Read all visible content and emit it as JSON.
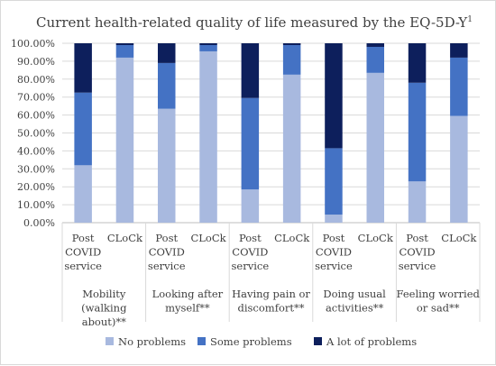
{
  "colors": {
    "no_problems": "#a8b9df",
    "some_problems": "#4472c4",
    "a_lot_of_problems": "#0d1f5c"
  },
  "chart_data": {
    "type": "bar",
    "stacked": true,
    "title": "Current health-related quality of life measured by the EQ-5D-Y",
    "title_superscript": "1",
    "xlabel": "",
    "ylabel": "",
    "ylim": [
      0,
      100
    ],
    "yticks": [
      "0.00%",
      "10.00%",
      "20.00%",
      "30.00%",
      "40.00%",
      "50.00%",
      "60.00%",
      "70.00%",
      "80.00%",
      "90.00%",
      "100.00%"
    ],
    "grid": true,
    "legend_position": "bottom",
    "groups": [
      {
        "label_lines": [
          "Mobility",
          "(walking",
          "about)**"
        ]
      },
      {
        "label_lines": [
          "Looking after",
          "myself**"
        ]
      },
      {
        "label_lines": [
          "Having pain or",
          "discomfort**"
        ]
      },
      {
        "label_lines": [
          "Doing usual",
          "activities**"
        ]
      },
      {
        "label_lines": [
          "Feeling worried",
          "or sad**"
        ]
      }
    ],
    "sub_categories": [
      {
        "label_lines": [
          "Post",
          "COVID",
          "service"
        ]
      },
      {
        "label_lines": [
          "CLoCk"
        ]
      }
    ],
    "categories": [
      "Mobility (walking about)** – Post COVID service",
      "Mobility (walking about)** – CLoCk",
      "Looking after myself** – Post COVID service",
      "Looking after myself** – CLoCk",
      "Having pain or discomfort** – Post COVID service",
      "Having pain or discomfort** – CLoCk",
      "Doing usual activities** – Post COVID service",
      "Doing usual activities** – CLoCk",
      "Feeling worried or sad** – Post COVID service",
      "Feeling worried or sad** – CLoCk"
    ],
    "series": [
      {
        "name": "No problems",
        "values": [
          32,
          92,
          63.5,
          95.5,
          18.5,
          82.5,
          4.5,
          83.5,
          23,
          59.5
        ]
      },
      {
        "name": "Some problems",
        "values": [
          40.5,
          7,
          25.5,
          3.5,
          51,
          16.5,
          37,
          14.5,
          55,
          32.5
        ]
      },
      {
        "name": "A lot of problems",
        "values": [
          27.5,
          1,
          11,
          1,
          30.5,
          1,
          58.5,
          2,
          22,
          8
        ]
      }
    ]
  }
}
